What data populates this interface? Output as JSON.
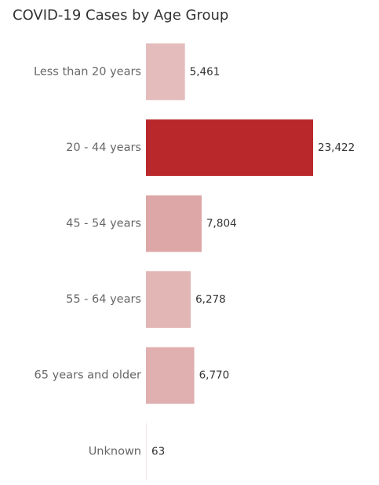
{
  "chart_data": {
    "type": "bar",
    "orientation": "horizontal",
    "title": "COVID-19 Cases by Age Group",
    "categories": [
      "Less than 20 years",
      "20 -  44 years",
      "45 - 54 years",
      "55 - 64 years",
      "65 years and older",
      "Unknown"
    ],
    "values": [
      5461,
      23422,
      7804,
      6278,
      6770,
      63
    ],
    "value_labels": [
      "5,461",
      "23,422",
      "7,804",
      "6,278",
      "6,770",
      "63"
    ],
    "colors": [
      "#e4bcbc",
      "#b9292b",
      "#dea7a7",
      "#e3b6b6",
      "#e0afaf",
      "#f1e4e4"
    ]
  }
}
